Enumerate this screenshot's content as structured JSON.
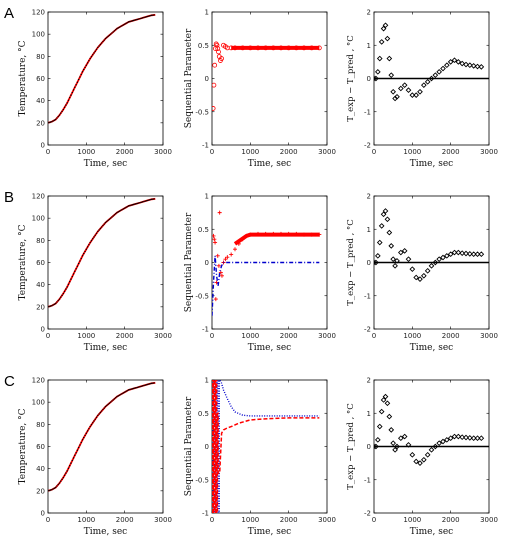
{
  "rows": [
    {
      "label": "A"
    },
    {
      "label": "B"
    },
    {
      "label": "C"
    }
  ],
  "colors": {
    "measured": "#000000",
    "predicted": "#ff0000",
    "sp_red": "#ff0000",
    "sp_blue": "#0000cc",
    "residual": "#000000"
  },
  "chart_data": [
    {
      "panel": "A-temperature",
      "type": "line",
      "xlabel": "Time, sec",
      "ylabel": "Temperature, °C",
      "xlim": [
        0,
        3000
      ],
      "ylim": [
        0,
        120
      ],
      "xticks": [
        "0",
        "1000",
        "2000",
        "3000"
      ],
      "yticks": [
        "0",
        "20",
        "40",
        "60",
        "80",
        "100",
        "120"
      ],
      "series": [
        {
          "style": "red-line",
          "x": [
            0,
            100,
            200,
            300,
            400,
            500,
            600,
            700,
            800,
            900,
            1000,
            1100,
            1200,
            1300,
            1400,
            1500,
            1600,
            1700,
            1800,
            1900,
            2000,
            2100,
            2200,
            2300,
            2400,
            2500,
            2600,
            2700,
            2800
          ],
          "y": [
            20,
            21,
            23,
            27,
            32,
            38,
            45,
            52,
            59,
            66,
            72,
            78,
            83,
            88,
            92,
            96,
            99,
            102,
            105,
            107,
            109,
            111,
            112,
            113,
            114,
            115,
            116,
            117,
            117.5
          ]
        },
        {
          "style": "black-dots",
          "x": [
            0,
            100,
            200,
            300,
            400,
            500,
            600,
            700,
            800,
            900,
            1000,
            1100,
            1200,
            1300,
            1400,
            1500,
            1600,
            1700,
            1800,
            1900,
            2000,
            2100,
            2200,
            2300,
            2400,
            2500,
            2600,
            2700,
            2800
          ],
          "y": [
            20,
            21,
            23,
            27,
            32,
            38,
            45,
            52,
            59,
            66,
            72,
            78,
            83,
            88,
            92,
            96,
            99,
            102,
            105,
            107,
            109,
            111,
            112,
            113,
            114,
            115,
            116,
            117,
            117.5
          ]
        }
      ]
    },
    {
      "panel": "A-sequential",
      "type": "scatter",
      "xlabel": "Time, sec",
      "ylabel": "Sequential Parameter",
      "xlim": [
        0,
        3000
      ],
      "ylim": [
        -1,
        1
      ],
      "xticks": [
        "0",
        "1000",
        "2000",
        "3000"
      ],
      "yticks": [
        "-1",
        "-0.5",
        "0",
        "0.5",
        "1"
      ],
      "series": [
        {
          "style": "red-open-circles",
          "x": [
            30,
            50,
            70,
            90,
            110,
            130,
            150,
            170,
            190,
            220,
            250,
            300,
            350,
            400,
            500,
            600,
            800,
            1000,
            1200,
            1400,
            1600,
            1800,
            2000,
            2200,
            2400,
            2600,
            2800
          ],
          "y": [
            -0.45,
            -0.1,
            0.2,
            0.45,
            0.52,
            0.5,
            0.45,
            0.4,
            0.33,
            0.27,
            0.3,
            0.5,
            0.48,
            0.46,
            0.46,
            0.46,
            0.46,
            0.46,
            0.46,
            0.46,
            0.46,
            0.46,
            0.46,
            0.46,
            0.46,
            0.46,
            0.46
          ]
        }
      ]
    },
    {
      "panel": "A-residual",
      "type": "scatter",
      "xlabel": "Time, sec",
      "ylabel": "T_exp − T_pred , °C",
      "xlim": [
        0,
        3000
      ],
      "ylim": [
        -2,
        2
      ],
      "xticks": [
        "0",
        "1000",
        "2000",
        "3000"
      ],
      "yticks": [
        "-2",
        "-1",
        "0",
        "1",
        "2"
      ],
      "series": [
        {
          "style": "black-diamonds",
          "x": [
            0,
            50,
            100,
            150,
            200,
            250,
            300,
            350,
            400,
            450,
            500,
            550,
            600,
            700,
            800,
            900,
            1000,
            1100,
            1200,
            1300,
            1400,
            1500,
            1600,
            1700,
            1800,
            1900,
            2000,
            2100,
            2200,
            2300,
            2400,
            2500,
            2600,
            2700,
            2800
          ],
          "y": [
            0,
            0,
            0.2,
            0.6,
            1.1,
            1.5,
            1.6,
            1.2,
            0.6,
            0.1,
            -0.4,
            -0.6,
            -0.55,
            -0.3,
            -0.2,
            -0.35,
            -0.5,
            -0.5,
            -0.4,
            -0.2,
            -0.1,
            0,
            0.1,
            0.2,
            0.3,
            0.4,
            0.5,
            0.55,
            0.5,
            0.45,
            0.42,
            0.4,
            0.38,
            0.36,
            0.35
          ]
        }
      ]
    },
    {
      "panel": "B-temperature",
      "type": "line",
      "xlabel": "Time, sec",
      "ylabel": "Temperature, °C",
      "xlim": [
        0,
        3000
      ],
      "ylim": [
        0,
        120
      ],
      "xticks": [
        "0",
        "1000",
        "2000",
        "3000"
      ],
      "yticks": [
        "0",
        "20",
        "40",
        "60",
        "80",
        "100",
        "120"
      ],
      "series": [
        {
          "style": "red-line",
          "x": [
            0,
            100,
            200,
            300,
            400,
            500,
            600,
            700,
            800,
            900,
            1000,
            1100,
            1200,
            1300,
            1400,
            1500,
            1600,
            1700,
            1800,
            1900,
            2000,
            2100,
            2200,
            2300,
            2400,
            2500,
            2600,
            2700,
            2800
          ],
          "y": [
            20,
            21,
            23,
            27,
            32,
            38,
            45,
            52,
            59,
            66,
            72,
            78,
            83,
            88,
            92,
            96,
            99,
            102,
            105,
            107,
            109,
            111,
            112,
            113,
            114,
            115,
            116,
            117,
            117.5
          ]
        },
        {
          "style": "black-dots",
          "x": [
            0,
            100,
            200,
            300,
            400,
            500,
            600,
            700,
            800,
            900,
            1000,
            1100,
            1200,
            1300,
            1400,
            1500,
            1600,
            1700,
            1800,
            1900,
            2000,
            2100,
            2200,
            2300,
            2400,
            2500,
            2600,
            2700,
            2800
          ],
          "y": [
            20,
            21,
            23,
            27,
            32,
            38,
            45,
            52,
            59,
            66,
            72,
            78,
            83,
            88,
            92,
            96,
            99,
            102,
            105,
            107,
            109,
            111,
            112,
            113,
            114,
            115,
            116,
            117,
            117.5
          ]
        }
      ]
    },
    {
      "panel": "B-sequential",
      "type": "scatter",
      "xlabel": "Time, sec",
      "ylabel": "Sequential Parameter",
      "xlim": [
        0,
        3000
      ],
      "ylim": [
        -1,
        1
      ],
      "xticks": [
        "0",
        "1000",
        "2000",
        "3000"
      ],
      "yticks": [
        "-1",
        "-0.5",
        "0",
        "0.5",
        "1"
      ],
      "series": [
        {
          "style": "red-plus",
          "x": [
            40,
            60,
            80,
            100,
            120,
            150,
            180,
            200,
            230,
            260,
            300,
            350,
            400,
            500,
            600,
            700,
            800,
            900,
            1000,
            1200,
            1400,
            1600,
            1800,
            2000,
            2200,
            2400,
            2600,
            2800
          ],
          "y": [
            0.4,
            0.35,
            0.3,
            -0.55,
            -0.3,
            0.1,
            -0.05,
            0.75,
            -0.15,
            -0.2,
            0.0,
            0.05,
            0.08,
            0.12,
            0.2,
            0.28,
            0.35,
            0.4,
            0.42,
            0.43,
            0.43,
            0.43,
            0.43,
            0.43,
            0.43,
            0.42,
            0.42,
            0.42
          ]
        },
        {
          "style": "blue-dashdot",
          "x": [
            0,
            40,
            80,
            120,
            160,
            200,
            250,
            300,
            400,
            500,
            700,
            1000,
            1500,
            2000,
            2500,
            2800
          ],
          "y": [
            -0.8,
            -0.3,
            0.1,
            -0.2,
            -0.35,
            -0.15,
            -0.05,
            0.0,
            0.0,
            0.0,
            0.0,
            0.0,
            0.0,
            0.0,
            0.0,
            0.0
          ]
        }
      ]
    },
    {
      "panel": "B-residual",
      "type": "scatter",
      "xlabel": "Time, sec",
      "ylabel": "T_exp − T_pred , °C",
      "xlim": [
        0,
        3000
      ],
      "ylim": [
        -2,
        2
      ],
      "xticks": [
        "0",
        "1000",
        "2000",
        "3000"
      ],
      "yticks": [
        "-2",
        "-1",
        "0",
        "1",
        "2"
      ],
      "series": [
        {
          "style": "black-diamonds",
          "x": [
            0,
            50,
            100,
            150,
            200,
            250,
            300,
            350,
            400,
            450,
            500,
            550,
            600,
            700,
            800,
            900,
            1000,
            1100,
            1200,
            1300,
            1400,
            1500,
            1600,
            1700,
            1800,
            1900,
            2000,
            2100,
            2200,
            2300,
            2400,
            2500,
            2600,
            2700,
            2800
          ],
          "y": [
            0,
            0,
            0.2,
            0.6,
            1.1,
            1.45,
            1.55,
            1.3,
            0.9,
            0.5,
            0.1,
            -0.1,
            0.05,
            0.3,
            0.35,
            0.1,
            -0.2,
            -0.45,
            -0.5,
            -0.4,
            -0.25,
            -0.1,
            0.0,
            0.1,
            0.15,
            0.2,
            0.25,
            0.3,
            0.3,
            0.28,
            0.27,
            0.26,
            0.25,
            0.25,
            0.25
          ]
        }
      ]
    },
    {
      "panel": "C-temperature",
      "type": "line",
      "xlabel": "Time, sec",
      "ylabel": "Temperature, °C",
      "xlim": [
        0,
        3000
      ],
      "ylim": [
        0,
        120
      ],
      "xticks": [
        "0",
        "1000",
        "2000",
        "3000"
      ],
      "yticks": [
        "0",
        "20",
        "40",
        "60",
        "80",
        "100",
        "120"
      ],
      "series": [
        {
          "style": "red-line",
          "x": [
            0,
            100,
            200,
            300,
            400,
            500,
            600,
            700,
            800,
            900,
            1000,
            1100,
            1200,
            1300,
            1400,
            1500,
            1600,
            1700,
            1800,
            1900,
            2000,
            2100,
            2200,
            2300,
            2400,
            2500,
            2600,
            2700,
            2800
          ],
          "y": [
            20,
            21,
            23,
            27,
            32,
            38,
            45,
            52,
            59,
            66,
            72,
            78,
            83,
            88,
            92,
            96,
            99,
            102,
            105,
            107,
            109,
            111,
            112,
            113,
            114,
            115,
            116,
            117,
            117.5
          ]
        },
        {
          "style": "black-dots",
          "x": [
            0,
            100,
            200,
            300,
            400,
            500,
            600,
            700,
            800,
            900,
            1000,
            1100,
            1200,
            1300,
            1400,
            1500,
            1600,
            1700,
            1800,
            1900,
            2000,
            2100,
            2200,
            2300,
            2400,
            2500,
            2600,
            2700,
            2800
          ],
          "y": [
            20,
            21,
            23,
            27,
            32,
            38,
            45,
            52,
            59,
            66,
            72,
            78,
            83,
            88,
            92,
            96,
            99,
            102,
            105,
            107,
            109,
            111,
            112,
            113,
            114,
            115,
            116,
            117,
            117.5
          ]
        }
      ]
    },
    {
      "panel": "C-sequential",
      "type": "line",
      "xlabel": "Time, sec",
      "ylabel": "Sequential Parameter",
      "xlim": [
        0,
        3000
      ],
      "ylim": [
        -1,
        1
      ],
      "xticks": [
        "0",
        "1000",
        "2000",
        "3000"
      ],
      "yticks": [
        "-1",
        "-0.5",
        "0",
        "0.5",
        "1"
      ],
      "series": [
        {
          "style": "blue-dotted",
          "x": [
            30,
            30,
            60,
            60,
            100,
            100,
            130,
            130,
            160,
            160,
            190,
            190,
            200,
            250,
            300,
            400,
            500,
            600,
            800,
            1000,
            1500,
            2000,
            2500,
            2800
          ],
          "y": [
            1,
            -1,
            -1,
            1,
            1,
            -1,
            -1,
            1,
            1,
            -1,
            -1,
            1,
            1.0,
            0.95,
            0.85,
            0.72,
            0.6,
            0.52,
            0.47,
            0.46,
            0.46,
            0.46,
            0.46,
            0.46
          ]
        },
        {
          "style": "red-dashed",
          "x": [
            20,
            20,
            40,
            40,
            60,
            60,
            80,
            80,
            100,
            100,
            120,
            120,
            140,
            140,
            160,
            160,
            200,
            250,
            300,
            400,
            500,
            700,
            1000,
            1500,
            2000,
            2500,
            2800
          ],
          "y": [
            -1,
            1,
            1,
            -1,
            -1,
            1,
            1,
            -1,
            -1,
            1,
            1,
            -1,
            -1,
            0.5,
            0.5,
            -0.4,
            -0.4,
            0.2,
            0.25,
            0.28,
            0.3,
            0.35,
            0.4,
            0.42,
            0.43,
            0.43,
            0.43
          ]
        }
      ]
    },
    {
      "panel": "C-residual",
      "type": "scatter",
      "xlabel": "Time, sec",
      "ylabel": "T_exp − T_pred , °C",
      "xlim": [
        0,
        3000
      ],
      "ylim": [
        -2,
        2
      ],
      "xticks": [
        "0",
        "1000",
        "2000",
        "3000"
      ],
      "yticks": [
        "-2",
        "-1",
        "0",
        "1",
        "2"
      ],
      "series": [
        {
          "style": "black-diamonds",
          "x": [
            0,
            50,
            100,
            150,
            200,
            250,
            300,
            350,
            400,
            450,
            500,
            550,
            600,
            700,
            800,
            900,
            1000,
            1100,
            1200,
            1300,
            1400,
            1500,
            1600,
            1700,
            1800,
            1900,
            2000,
            2100,
            2200,
            2300,
            2400,
            2500,
            2600,
            2700,
            2800
          ],
          "y": [
            0,
            0,
            0.2,
            0.6,
            1.05,
            1.4,
            1.5,
            1.3,
            0.9,
            0.5,
            0.1,
            -0.1,
            0.0,
            0.25,
            0.3,
            0.05,
            -0.25,
            -0.45,
            -0.5,
            -0.4,
            -0.25,
            -0.1,
            0.0,
            0.1,
            0.15,
            0.2,
            0.25,
            0.3,
            0.3,
            0.28,
            0.27,
            0.26,
            0.25,
            0.25,
            0.25
          ]
        }
      ]
    }
  ]
}
